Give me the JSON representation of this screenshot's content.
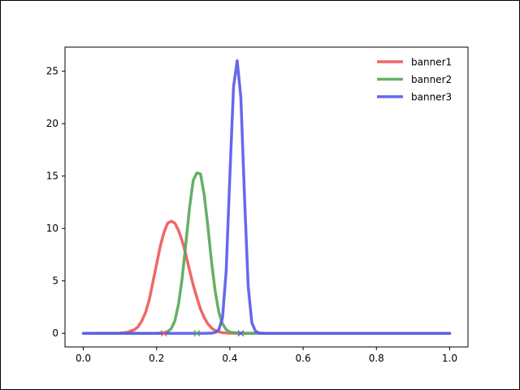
{
  "chart_data": {
    "type": "line",
    "title": "",
    "xlabel": "",
    "ylabel": "",
    "xlim": [
      -0.05,
      1.05
    ],
    "ylim": [
      -1.3,
      27.3
    ],
    "xticks": [
      0.0,
      0.2,
      0.4,
      0.6,
      0.8,
      1.0
    ],
    "xtick_labels": [
      "0.0",
      "0.2",
      "0.4",
      "0.6",
      "0.8",
      "1.0"
    ],
    "yticks": [
      0,
      5,
      10,
      15,
      20,
      25
    ],
    "ytick_labels": [
      "0",
      "5",
      "10",
      "15",
      "20",
      "25"
    ],
    "grid": false,
    "legend": {
      "placement": "top-right",
      "frame": false
    },
    "series": [
      {
        "name": "banner1",
        "color": "#ee5a5a",
        "x": [
          0.0,
          0.1,
          0.12,
          0.14,
          0.15,
          0.16,
          0.17,
          0.18,
          0.19,
          0.2,
          0.21,
          0.22,
          0.23,
          0.24,
          0.25,
          0.26,
          0.27,
          0.28,
          0.29,
          0.3,
          0.31,
          0.32,
          0.33,
          0.34,
          0.35,
          0.36,
          0.37,
          0.38,
          0.4,
          0.45,
          1.0
        ],
        "y": [
          0,
          0.02,
          0.1,
          0.35,
          0.65,
          1.2,
          2.0,
          3.2,
          4.9,
          6.6,
          8.3,
          9.6,
          10.5,
          10.7,
          10.5,
          9.8,
          8.8,
          7.5,
          6.0,
          4.6,
          3.4,
          2.3,
          1.5,
          0.9,
          0.5,
          0.27,
          0.13,
          0.06,
          0.01,
          0,
          0
        ],
        "marker_x": 0.22
      },
      {
        "name": "banner2",
        "color": "#5aa85a",
        "x": [
          0.0,
          0.2,
          0.22,
          0.23,
          0.24,
          0.25,
          0.26,
          0.27,
          0.28,
          0.29,
          0.3,
          0.31,
          0.32,
          0.33,
          0.34,
          0.35,
          0.36,
          0.37,
          0.38,
          0.39,
          0.4,
          0.42,
          0.44,
          0.48,
          1.0
        ],
        "y": [
          0,
          0,
          0.05,
          0.15,
          0.45,
          1.2,
          2.8,
          5.3,
          8.6,
          12.0,
          14.6,
          15.3,
          15.2,
          13.2,
          10.2,
          6.8,
          4.0,
          2.0,
          0.9,
          0.35,
          0.12,
          0.03,
          0.01,
          0,
          0
        ],
        "marker_x": 0.31
      },
      {
        "name": "banner3",
        "color": "#5a5aee",
        "x": [
          0.0,
          0.33,
          0.35,
          0.36,
          0.37,
          0.38,
          0.39,
          0.4,
          0.41,
          0.42,
          0.43,
          0.44,
          0.45,
          0.46,
          0.47,
          0.48,
          0.5,
          1.0
        ],
        "y": [
          0,
          0,
          0.02,
          0.08,
          0.35,
          1.5,
          6.0,
          15.0,
          23.5,
          26.0,
          22.5,
          13.0,
          4.5,
          1.0,
          0.2,
          0.03,
          0,
          0
        ],
        "marker_x": 0.43
      }
    ]
  }
}
